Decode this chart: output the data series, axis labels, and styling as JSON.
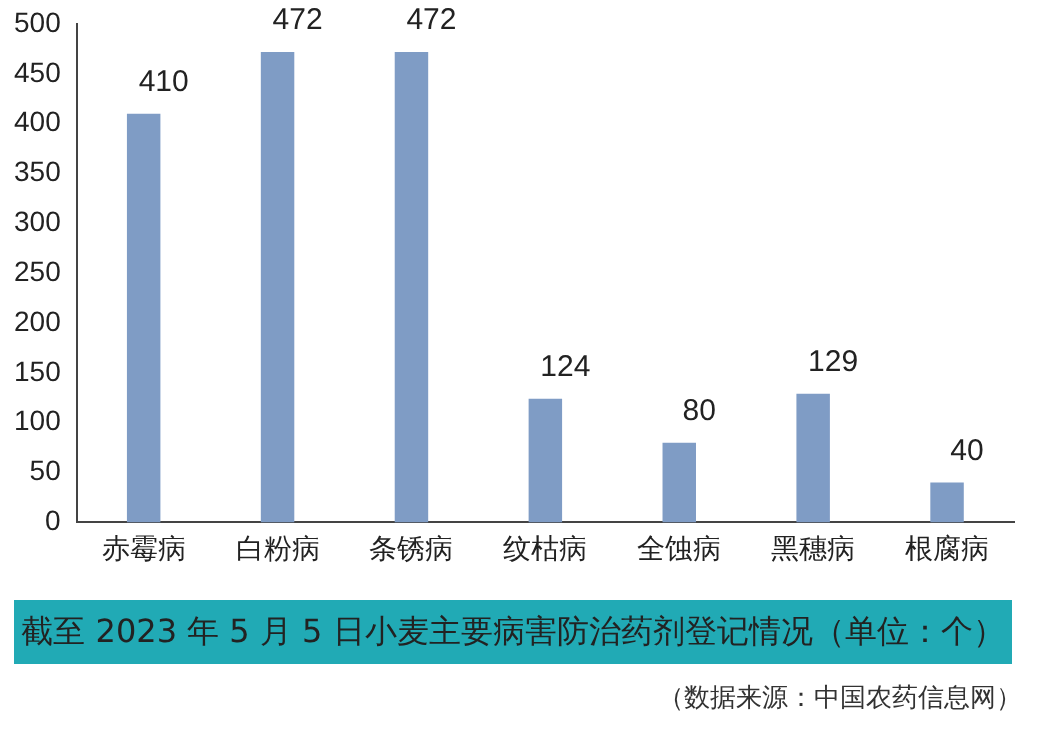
{
  "chart_data": {
    "type": "bar",
    "title": "截至 2023 年 5 月 5 日小麦主要病害防治药剂登记情况（单位：个）",
    "categories": [
      "赤霉病",
      "白粉病",
      "条锈病",
      "纹枯病",
      "全蚀病",
      "黑穗病",
      "根腐病"
    ],
    "values": [
      410,
      472,
      472,
      124,
      80,
      129,
      40
    ],
    "color": "#7f9cc5",
    "ylim": [
      0,
      500
    ],
    "yticks": [
      0,
      50,
      100,
      150,
      200,
      250,
      300,
      350,
      400,
      450,
      500
    ],
    "grid": false,
    "legend": false,
    "data_labels": true,
    "annotations": [
      "（数据来源：中国农药信息网）"
    ]
  }
}
